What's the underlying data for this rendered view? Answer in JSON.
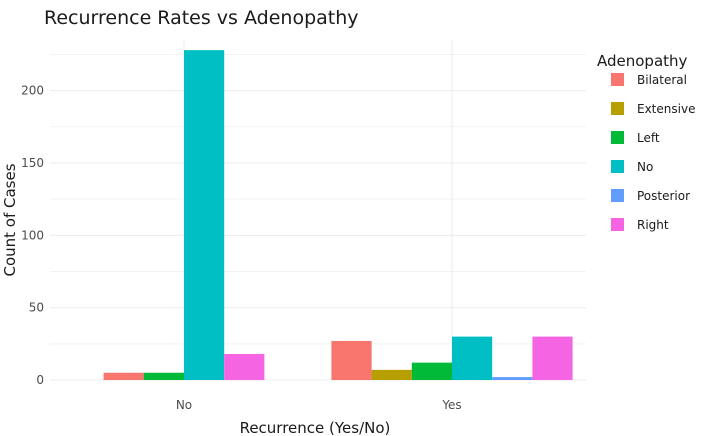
{
  "chart_data": {
    "type": "bar",
    "title": "Recurrence Rates  vs Adenopathy",
    "xlabel": "Recurrence (Yes/No)",
    "ylabel": "Count of Cases",
    "categories": [
      "No",
      "Yes"
    ],
    "ylim": [
      0,
      235
    ],
    "yticks": [
      0,
      50,
      100,
      150,
      200
    ],
    "ytick_labels": [
      "0",
      "50",
      "100",
      "150",
      "200"
    ],
    "grid": true,
    "legend_title": "Adenopathy",
    "legend_position": "right",
    "series": [
      {
        "name": "Bilateral",
        "color": "#F8766D",
        "values": [
          5,
          27
        ]
      },
      {
        "name": "Extensive",
        "color": "#B79F00",
        "values": [
          null,
          7
        ]
      },
      {
        "name": "Left",
        "color": "#00BA38",
        "values": [
          5,
          12
        ]
      },
      {
        "name": "No",
        "color": "#00BFC4",
        "values": [
          228,
          30
        ]
      },
      {
        "name": "Posterior",
        "color": "#619CFF",
        "values": [
          null,
          2
        ]
      },
      {
        "name": "Right",
        "color": "#F564E3",
        "values": [
          18,
          30
        ]
      }
    ]
  }
}
